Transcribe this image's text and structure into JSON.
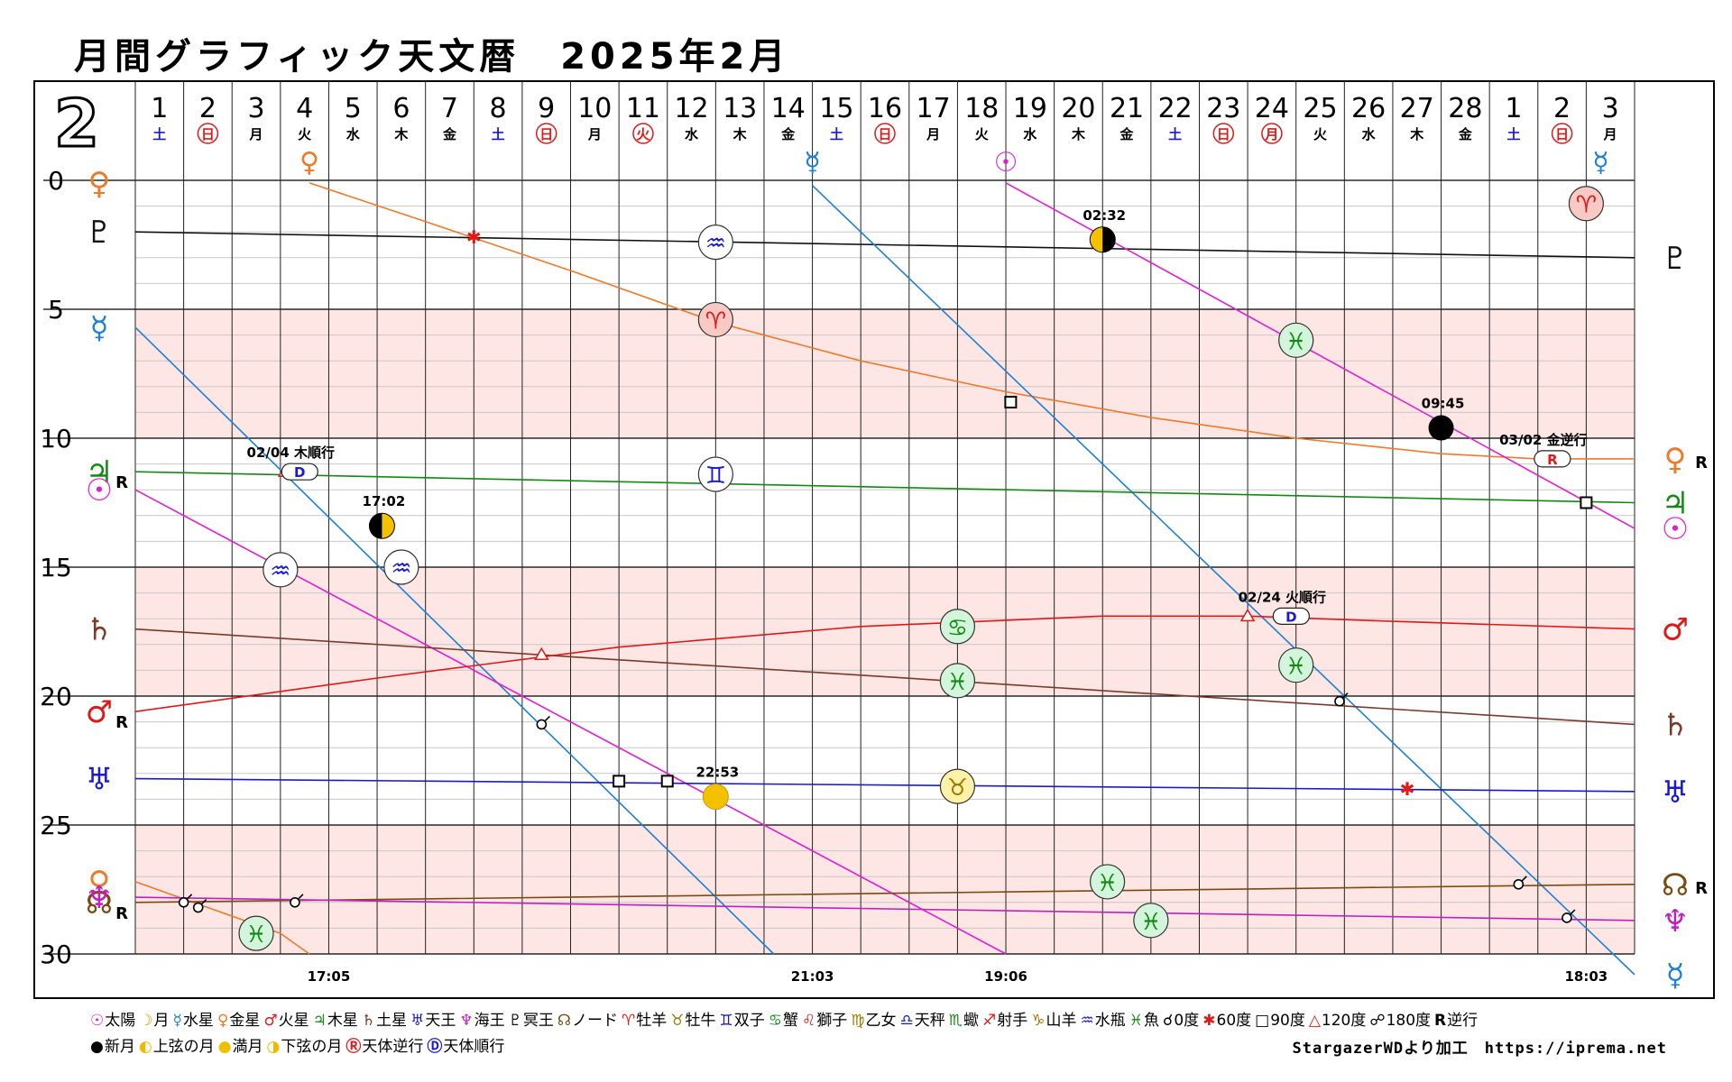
{
  "title": "月間グラフィック天文暦　2025年2月",
  "credit": "StargazerWDより加工　https://iprema.net",
  "colors": {
    "sun": "#e020d0",
    "mercury": "#1e7fd8",
    "venus": "#f07a2a",
    "mars": "#e01818",
    "jupiter": "#148a14",
    "saturn": "#7a3a2a",
    "uranus": "#1a1acc",
    "neptune": "#c020c0",
    "pluto": "#111111",
    "node": "#7a4a10",
    "band": "#fde6e3",
    "grid": "#222222",
    "saturday": "#1a1acc",
    "holiday": "#e01818"
  },
  "chart_data": {
    "type": "line",
    "month_label": "2",
    "x": {
      "days": [
        "1",
        "2",
        "3",
        "4",
        "5",
        "6",
        "7",
        "8",
        "9",
        "10",
        "11",
        "12",
        "13",
        "14",
        "15",
        "16",
        "17",
        "18",
        "19",
        "20",
        "21",
        "22",
        "23",
        "24",
        "25",
        "26",
        "27",
        "28",
        "1",
        "2",
        "3"
      ],
      "weekdays": [
        "土",
        "日",
        "月",
        "火",
        "水",
        "木",
        "金",
        "土",
        "日",
        "月",
        "火",
        "水",
        "木",
        "金",
        "土",
        "日",
        "月",
        "火",
        "水",
        "木",
        "金",
        "土",
        "日",
        "月",
        "火",
        "水",
        "木",
        "金",
        "土",
        "日",
        "月"
      ],
      "weekday_types": [
        "sat",
        "hol",
        "",
        "",
        "",
        "",
        "",
        "sat",
        "hol",
        "",
        "hol",
        "",
        "",
        "",
        "sat",
        "hol",
        "",
        "",
        "",
        "",
        "",
        "sat",
        "hol",
        "hol",
        "",
        "",
        "",
        "",
        "sat",
        "hol",
        ""
      ],
      "range": [
        0,
        31
      ]
    },
    "ylim": [
      0,
      30
    ],
    "y_ticks": [
      "0",
      "5",
      "10",
      "15",
      "20",
      "25",
      "30"
    ],
    "series": [
      {
        "key": "pluto",
        "color": "pluto",
        "left_label": "♇",
        "right_label": "♇",
        "left_r": "",
        "right_r": "",
        "start": [
          0,
          2.0
        ],
        "end": [
          31,
          3.0
        ]
      },
      {
        "key": "venus",
        "color": "venus",
        "left_label": "♀",
        "right_label": "♀",
        "left_r": "",
        "right_r": "R",
        "points": [
          [
            3.6,
            0.1
          ],
          [
            6,
            1.6
          ],
          [
            9,
            3.5
          ],
          [
            12,
            5.5
          ],
          [
            15,
            7.0
          ],
          [
            18,
            8.2
          ],
          [
            21,
            9.2
          ],
          [
            24,
            10.0
          ],
          [
            27,
            10.6
          ],
          [
            29,
            10.8
          ],
          [
            31,
            10.8
          ]
        ]
      },
      {
        "key": "venus_prev",
        "color": "venus",
        "left_label": "♀",
        "right_label": "",
        "left_r": "",
        "right_r": "",
        "points": [
          [
            0,
            27.2
          ],
          [
            1.5,
            28.2
          ],
          [
            3,
            29.2
          ],
          [
            3.6,
            30
          ]
        ]
      },
      {
        "key": "mercury_a",
        "color": "mercury",
        "left_label": "☿",
        "right_label": "",
        "left_r": "",
        "right_r": "",
        "start": [
          0,
          5.7
        ],
        "end": [
          13.2,
          30
        ]
      },
      {
        "key": "mercury_b",
        "color": "mercury",
        "left_label": "",
        "right_label": "☿",
        "left_r": "",
        "right_r": "",
        "start": [
          14,
          0.2
        ],
        "end": [
          31,
          30.8
        ]
      },
      {
        "key": "jupiter",
        "color": "jupiter",
        "left_label": "♃",
        "right_label": "♃",
        "left_r": "R",
        "right_r": "",
        "start": [
          0,
          11.3
        ],
        "end": [
          31,
          12.5
        ]
      },
      {
        "key": "sun_a",
        "color": "sun",
        "left_label": "☉",
        "right_label": "",
        "left_r": "",
        "right_r": "",
        "start": [
          0,
          12.0
        ],
        "end": [
          18,
          30
        ]
      },
      {
        "key": "sun_b",
        "color": "sun",
        "left_label": "",
        "right_label": "☉",
        "left_r": "",
        "right_r": "",
        "start": [
          18,
          0.1
        ],
        "end": [
          31,
          13.5
        ]
      },
      {
        "key": "saturn",
        "color": "saturn",
        "left_label": "♄",
        "right_label": "♄",
        "left_r": "",
        "right_r": "",
        "start": [
          0,
          17.4
        ],
        "end": [
          31,
          21.1
        ]
      },
      {
        "key": "mars",
        "color": "mars",
        "left_label": "♂",
        "right_label": "♂",
        "left_r": "R",
        "right_r": "",
        "points": [
          [
            0,
            20.6
          ],
          [
            5,
            19.3
          ],
          [
            10,
            18.1
          ],
          [
            15,
            17.3
          ],
          [
            20,
            16.9
          ],
          [
            23,
            16.9
          ],
          [
            26,
            17.1
          ],
          [
            31,
            17.4
          ]
        ]
      },
      {
        "key": "uranus",
        "color": "uranus",
        "left_label": "♅",
        "right_label": "♅",
        "left_r": "",
        "right_r": "",
        "start": [
          0,
          23.2
        ],
        "end": [
          31,
          23.7
        ]
      },
      {
        "key": "node",
        "color": "node",
        "left_label": "☊",
        "right_label": "☊",
        "left_r": "R",
        "right_r": "R",
        "start": [
          0,
          28.0
        ],
        "end": [
          31,
          27.3
        ]
      },
      {
        "key": "neptune",
        "color": "neptune",
        "left_label": "♆",
        "right_label": "♆",
        "left_r": "",
        "right_r": "",
        "start": [
          0,
          27.8
        ],
        "end": [
          31,
          28.7
        ]
      }
    ],
    "signs": [
      {
        "glyph": "♒",
        "x": 12.0,
        "y": 2.4,
        "fill": "#ffffff",
        "stroke": "#1a1acc"
      },
      {
        "glyph": "♈",
        "x": 12.0,
        "y": 5.4,
        "fill": "#f9c9c4",
        "stroke": "#e01818"
      },
      {
        "glyph": "♊",
        "x": 12.0,
        "y": 11.4,
        "fill": "#ffffff",
        "stroke": "#1a1acc"
      },
      {
        "glyph": "♒",
        "x": 3.0,
        "y": 15.1,
        "fill": "#ffffff",
        "stroke": "#1a1acc"
      },
      {
        "glyph": "♒",
        "x": 5.5,
        "y": 15.0,
        "fill": "#ffffff",
        "stroke": "#1a1acc"
      },
      {
        "glyph": "♋",
        "x": 17.0,
        "y": 17.3,
        "fill": "#d2f5dc",
        "stroke": "#148a14"
      },
      {
        "glyph": "♓",
        "x": 17.0,
        "y": 19.4,
        "fill": "#d2f5dc",
        "stroke": "#148a14"
      },
      {
        "glyph": "♉",
        "x": 17.0,
        "y": 23.5,
        "fill": "#fff2a8",
        "stroke": "#9a7a00"
      },
      {
        "glyph": "♓",
        "x": 24.0,
        "y": 6.2,
        "fill": "#d2f5dc",
        "stroke": "#148a14"
      },
      {
        "glyph": "♓",
        "x": 24.0,
        "y": 18.8,
        "fill": "#d2f5dc",
        "stroke": "#148a14"
      },
      {
        "glyph": "♓",
        "x": 20.1,
        "y": 27.2,
        "fill": "#d2f5dc",
        "stroke": "#148a14"
      },
      {
        "glyph": "♓",
        "x": 21.0,
        "y": 28.7,
        "fill": "#d2f5dc",
        "stroke": "#148a14"
      },
      {
        "glyph": "♓",
        "x": 2.5,
        "y": 29.2,
        "fill": "#d2f5dc",
        "stroke": "#148a14"
      },
      {
        "glyph": "♈",
        "x": 30.0,
        "y": 0.9,
        "fill": "#f9c9c4",
        "stroke": "#e01818"
      }
    ],
    "moon_phases": [
      {
        "x": 5.1,
        "y": 13.4,
        "phase": "first",
        "label": "17:02"
      },
      {
        "x": 12.0,
        "y": 23.9,
        "phase": "full",
        "label": "22:53"
      },
      {
        "x": 20.0,
        "y": 2.3,
        "phase": "last",
        "label": "02:32"
      },
      {
        "x": 27.0,
        "y": 9.6,
        "phase": "new",
        "label": "09:45"
      }
    ],
    "aspects": [
      {
        "x": 7.0,
        "y": 2.2,
        "type": "sextile"
      },
      {
        "x": 3.1,
        "y": 11.3,
        "type": "trine"
      },
      {
        "x": 8.4,
        "y": 18.4,
        "type": "trine"
      },
      {
        "x": 23.0,
        "y": 16.9,
        "type": "trine"
      },
      {
        "x": 8.4,
        "y": 21.1,
        "type": "conjunction"
      },
      {
        "x": 10.0,
        "y": 23.3,
        "type": "square"
      },
      {
        "x": 11.0,
        "y": 23.3,
        "type": "square"
      },
      {
        "x": 18.1,
        "y": 8.6,
        "type": "square"
      },
      {
        "x": 30.0,
        "y": 12.5,
        "type": "square"
      },
      {
        "x": 24.9,
        "y": 20.2,
        "type": "conjunction"
      },
      {
        "x": 26.3,
        "y": 23.6,
        "type": "sextile"
      },
      {
        "x": 28.6,
        "y": 27.3,
        "type": "conjunction"
      },
      {
        "x": 29.6,
        "y": 28.6,
        "type": "conjunction"
      },
      {
        "x": 1.0,
        "y": 28.0,
        "type": "conjunction"
      },
      {
        "x": 1.3,
        "y": 28.2,
        "type": "conjunction"
      },
      {
        "x": 3.3,
        "y": 28.0,
        "type": "conjunction"
      }
    ],
    "stations": [
      {
        "x": 3.4,
        "y": 11.3,
        "badge": "D",
        "label": "02/04 木順行"
      },
      {
        "x": 23.9,
        "y": 16.9,
        "badge": "D",
        "label": "02/24 火順行"
      },
      {
        "x": 29.3,
        "y": 10.8,
        "badge": "R",
        "label": "03/02 金逆行"
      }
    ],
    "top_markers": [
      {
        "glyph": "♀",
        "x": 3.6,
        "color": "venus"
      },
      {
        "glyph": "☿",
        "x": 14.0,
        "color": "mercury"
      },
      {
        "glyph": "☉",
        "x": 18.0,
        "color": "sun"
      },
      {
        "glyph": "☿",
        "x": 30.3,
        "color": "mercury"
      }
    ],
    "time_labels": [
      {
        "x": 4.0,
        "label": "17:05"
      },
      {
        "x": 14.0,
        "label": "21:03"
      },
      {
        "x": 18.0,
        "label": "19:06"
      },
      {
        "x": 30.0,
        "label": "18:03"
      }
    ]
  },
  "legend": {
    "row1": [
      {
        "g": "☉",
        "t": "太陽",
        "c": "#e020d0"
      },
      {
        "g": "☽",
        "t": "月",
        "c": "#e0a000"
      },
      {
        "g": "☿",
        "t": "水星",
        "c": "#1e7fd8"
      },
      {
        "g": "♀",
        "t": "金星",
        "c": "#f07a2a"
      },
      {
        "g": "♂",
        "t": "火星",
        "c": "#e01818"
      },
      {
        "g": "♃",
        "t": "木星",
        "c": "#148a14"
      },
      {
        "g": "♄",
        "t": "土星",
        "c": "#7a3a2a"
      },
      {
        "g": "♅",
        "t": "天王",
        "c": "#1a1acc"
      },
      {
        "g": "♆",
        "t": "海王",
        "c": "#c020c0"
      },
      {
        "g": "♇",
        "t": "冥王",
        "c": "#111111"
      },
      {
        "g": "☊",
        "t": "ノード",
        "c": "#7a4a10"
      },
      {
        "g": "♈",
        "t": "牡羊",
        "c": "#e01818"
      },
      {
        "g": "♉",
        "t": "牡牛",
        "c": "#9a7a00"
      },
      {
        "g": "♊",
        "t": "双子",
        "c": "#1a1acc"
      },
      {
        "g": "♋",
        "t": "蟹",
        "c": "#148a14"
      },
      {
        "g": "♌",
        "t": "獅子",
        "c": "#e01818"
      },
      {
        "g": "♍",
        "t": "乙女",
        "c": "#9a7a00"
      },
      {
        "g": "♎",
        "t": "天秤",
        "c": "#1a1acc"
      },
      {
        "g": "♏",
        "t": "蠍",
        "c": "#148a14"
      },
      {
        "g": "♐",
        "t": "射手",
        "c": "#e01818"
      },
      {
        "g": "♑",
        "t": "山羊",
        "c": "#9a7a00"
      },
      {
        "g": "♒",
        "t": "水瓶",
        "c": "#1a1acc"
      },
      {
        "g": "♓",
        "t": "魚",
        "c": "#148a14"
      },
      {
        "g": "☌",
        "t": "0度",
        "c": "#000000"
      },
      {
        "g": "✱",
        "t": "60度",
        "c": "#e01818"
      },
      {
        "g": "□",
        "t": "90度",
        "c": "#000000"
      },
      {
        "g": "△",
        "t": "120度",
        "c": "#e01818"
      },
      {
        "g": "☍",
        "t": "180度",
        "c": "#000000"
      },
      {
        "g": "R",
        "t": "逆行",
        "c": "#000000"
      }
    ],
    "row2": [
      {
        "g": "●",
        "t": "新月",
        "c": "#000000"
      },
      {
        "g": "◐",
        "t": "上弦の月",
        "c": "#f0b800"
      },
      {
        "g": "●",
        "t": "満月",
        "c": "#f0c000"
      },
      {
        "g": "◑",
        "t": "下弦の月",
        "c": "#f0b800"
      },
      {
        "g": "Ⓡ",
        "t": "天体逆行",
        "c": "#e01818"
      },
      {
        "g": "Ⓓ",
        "t": "天体順行",
        "c": "#1a1acc"
      }
    ]
  }
}
